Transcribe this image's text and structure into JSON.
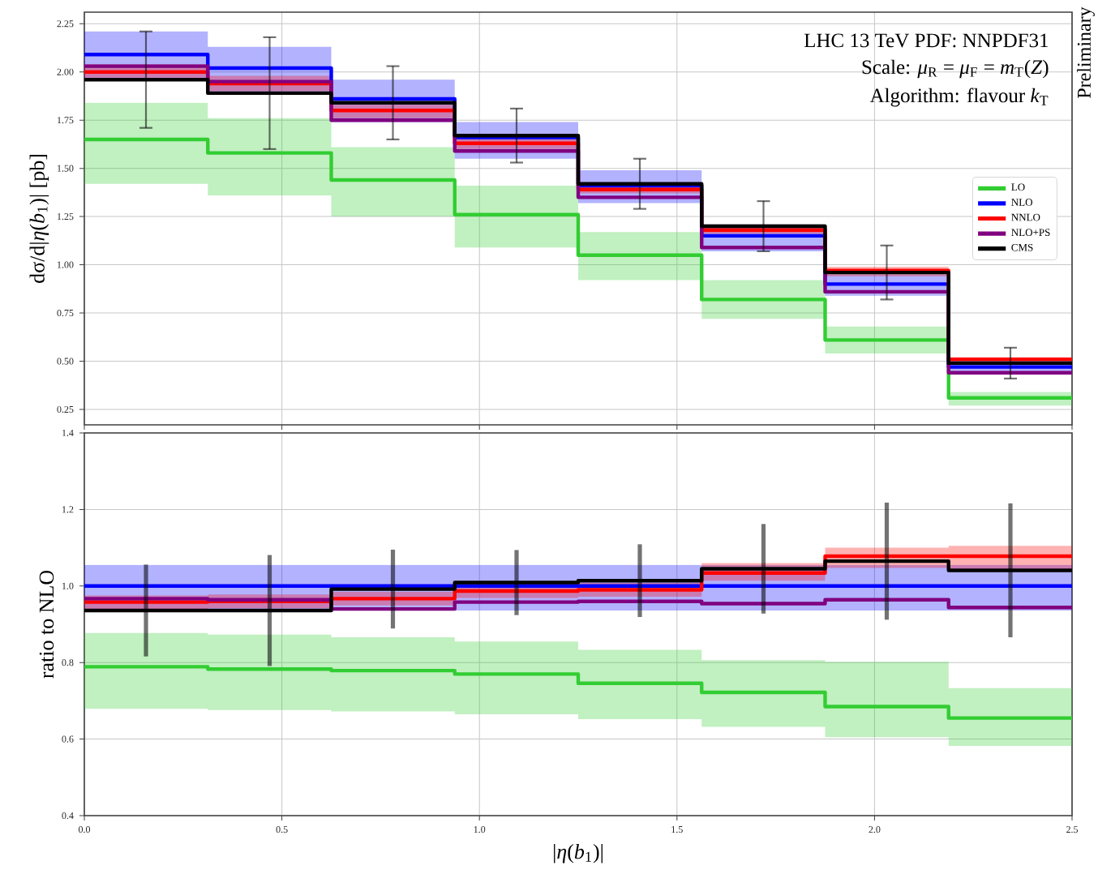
{
  "chart_data": [
    {
      "type": "step",
      "ylabel": "dσ/d|*η*(*b*$_{1}$)| [pb]",
      "x": [
        0,
        0.156,
        0.469,
        0.781,
        1.094,
        1.406,
        1.719,
        2.031,
        2.344,
        2.5
      ],
      "xlim": [
        0,
        2.5
      ],
      "xticks": [
        0,
        0.5,
        1,
        1.5,
        2,
        2.5
      ],
      "ylim": [
        0.17,
        2.31
      ],
      "yticks": [
        {
          "value": 0.25,
          "label": "0.25"
        },
        {
          "value": 0.5,
          "label": "0.50"
        },
        {
          "value": 0.75,
          "label": "0.75"
        },
        {
          "value": 1.0,
          "label": "1.00"
        },
        {
          "value": 1.25,
          "label": "1.25"
        },
        {
          "value": 1.5,
          "label": "1.50"
        },
        {
          "value": 1.75,
          "label": "1.75"
        },
        {
          "value": 2.0,
          "label": "2.00"
        },
        {
          "value": 2.25,
          "label": "2.25"
        }
      ],
      "tick_labels": "y",
      "grid": true,
      "legend": "right",
      "series": [
        {
          "name": "LO",
          "color": "#32cd32",
          "values": [
            1.65,
            1.65,
            1.58,
            1.44,
            1.26,
            1.05,
            0.82,
            0.61,
            0.31,
            0.31
          ],
          "lower": [
            1.42,
            1.42,
            1.36,
            1.25,
            1.09,
            0.92,
            0.72,
            0.54,
            0.27,
            0.27
          ],
          "upper": [
            1.84,
            1.84,
            1.76,
            1.61,
            1.41,
            1.17,
            0.92,
            0.68,
            0.34,
            0.34
          ]
        },
        {
          "name": "NLO",
          "color": "#0000ff",
          "values": [
            2.09,
            2.09,
            2.02,
            1.86,
            1.66,
            1.41,
            1.15,
            0.9,
            0.47,
            0.47
          ],
          "lower": [
            1.96,
            1.96,
            1.89,
            1.74,
            1.55,
            1.32,
            1.07,
            0.84,
            0.44,
            0.44
          ],
          "upper": [
            2.21,
            2.21,
            2.13,
            1.96,
            1.74,
            1.49,
            1.21,
            0.95,
            0.5,
            0.5
          ]
        },
        {
          "name": "NNLO",
          "color": "#ff0000",
          "values": [
            2.0,
            2.0,
            1.94,
            1.8,
            1.63,
            1.39,
            1.18,
            0.97,
            0.51,
            0.51
          ],
          "lower": [
            1.97,
            1.97,
            1.9,
            1.76,
            1.6,
            1.37,
            1.16,
            0.94,
            0.49,
            0.49
          ],
          "upper": [
            2.04,
            2.04,
            1.98,
            1.83,
            1.66,
            1.42,
            1.21,
            0.99,
            0.52,
            0.52
          ]
        },
        {
          "name": "NLO+PS",
          "color": "#800080",
          "values": [
            2.03,
            2.03,
            1.95,
            1.75,
            1.59,
            1.35,
            1.09,
            0.86,
            0.44,
            0.44
          ]
        },
        {
          "name": "CMS",
          "color": "#000000",
          "values": [
            1.96,
            1.96,
            1.89,
            1.84,
            1.67,
            1.42,
            1.2,
            0.96,
            0.49,
            0.49
          ],
          "errors": [
            null,
            0.25,
            0.29,
            0.19,
            0.14,
            0.13,
            0.13,
            0.14,
            0.08,
            null
          ]
        }
      ],
      "annotations": [
        "LHC 13 TeV PDF: NNPDF31",
        "Scale: *μ*$_{R}$ = *μ*$_{F}$ = *m*$_{T}$(*Z*)",
        "Algorithm: flavour *k*$_{T}$",
        "Preliminary"
      ]
    },
    {
      "type": "step",
      "xlabel": "|*η*(*b*$_{1}$)|",
      "ylabel": "ratio to NLO",
      "x": [
        0,
        0.156,
        0.469,
        0.781,
        1.094,
        1.406,
        1.719,
        2.031,
        2.344,
        2.5
      ],
      "xlim": [
        0,
        2.5
      ],
      "xticks": [
        {
          "value": 0,
          "label": "0.0"
        },
        {
          "value": 0.5,
          "label": "0.5"
        },
        {
          "value": 1.0,
          "label": "1.0"
        },
        {
          "value": 1.5,
          "label": "1.5"
        },
        {
          "value": 2.0,
          "label": "2.0"
        },
        {
          "value": 2.5,
          "label": "2.5"
        }
      ],
      "ylim": [
        0.4,
        1.4
      ],
      "yticks": [
        {
          "value": 0.4,
          "label": "0.4"
        },
        {
          "value": 0.6,
          "label": "0.6"
        },
        {
          "value": 0.8,
          "label": "0.8"
        },
        {
          "value": 1.0,
          "label": "1.0"
        },
        {
          "value": 1.2,
          "label": "1.2"
        },
        {
          "value": 1.4,
          "label": "1.4"
        }
      ],
      "grid": true,
      "series": [
        {
          "color": "#32cd32",
          "values": [
            0.789,
            0.789,
            0.783,
            0.779,
            0.77,
            0.746,
            0.722,
            0.685,
            0.655,
            0.655
          ],
          "lower": [
            0.679,
            0.679,
            0.676,
            0.672,
            0.665,
            0.652,
            0.632,
            0.605,
            0.582,
            0.582
          ],
          "upper": [
            0.877,
            0.877,
            0.873,
            0.866,
            0.855,
            0.833,
            0.806,
            0.802,
            0.733,
            0.733
          ]
        },
        {
          "color": "#0000ff",
          "values": [
            1,
            1,
            1,
            1,
            1,
            1,
            1,
            1,
            1,
            1
          ],
          "lower": [
            0.936,
            0.936,
            0.936,
            0.936,
            0.936,
            0.936,
            0.936,
            0.936,
            0.936,
            0.936
          ],
          "upper": [
            1.055,
            1.055,
            1.055,
            1.055,
            1.055,
            1.055,
            1.055,
            1.055,
            1.055,
            1.055
          ]
        },
        {
          "color": "#ff0000",
          "values": [
            0.958,
            0.958,
            0.96,
            0.967,
            0.987,
            0.99,
            1.034,
            1.078,
            1.078,
            1.078
          ],
          "lower": [
            0.94,
            0.94,
            0.942,
            0.949,
            0.969,
            0.972,
            1.014,
            1.047,
            1.04,
            1.04
          ],
          "upper": [
            0.975,
            0.975,
            0.978,
            0.985,
            1.005,
            1.008,
            1.06,
            1.1,
            1.105,
            1.105
          ]
        },
        {
          "color": "#800080",
          "values": [
            0.967,
            0.967,
            0.964,
            0.94,
            0.958,
            0.96,
            0.954,
            0.964,
            0.944,
            0.944
          ]
        },
        {
          "color": "#000000",
          "values": [
            0.936,
            0.936,
            0.936,
            0.992,
            1.009,
            1.014,
            1.045,
            1.065,
            1.041,
            1.041
          ],
          "errors": [
            null,
            0.12,
            0.145,
            0.103,
            0.085,
            0.095,
            0.117,
            0.153,
            0.175,
            null
          ]
        }
      ]
    }
  ]
}
